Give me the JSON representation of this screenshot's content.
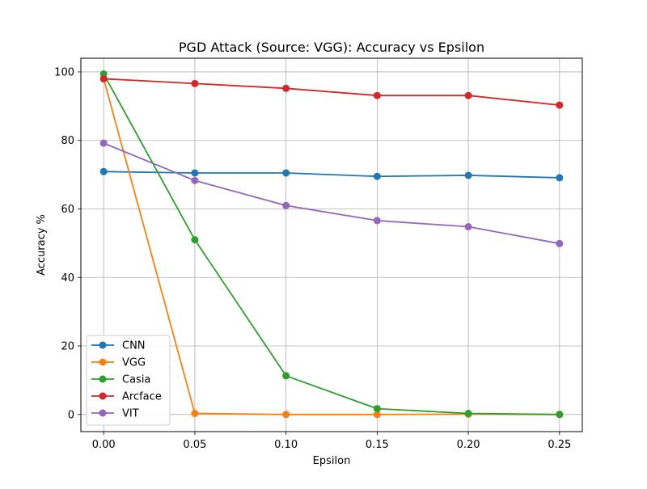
{
  "chart_data": {
    "type": "line",
    "title": "PGD Attack (Source: VGG): Accuracy vs Epsilon",
    "xlabel": "Epsilon",
    "ylabel": "Accuracy %",
    "x": [
      0.0,
      0.05,
      0.1,
      0.15,
      0.2,
      0.25
    ],
    "x_tick_labels": [
      "0.00",
      "0.05",
      "0.10",
      "0.15",
      "0.20",
      "0.25"
    ],
    "y_ticks": [
      0,
      20,
      40,
      60,
      80,
      100
    ],
    "y_tick_labels": [
      "0",
      "20",
      "40",
      "60",
      "80",
      "100"
    ],
    "xlim": [
      -0.0125,
      0.2625
    ],
    "ylim": [
      -5,
      104
    ],
    "grid": true,
    "legend_position": "lower-left",
    "series": [
      {
        "name": "CNN",
        "color": "#1f77b4",
        "values": [
          70.9,
          70.5,
          70.5,
          69.5,
          69.8,
          69.1
        ]
      },
      {
        "name": "VGG",
        "color": "#ff7f0e",
        "values": [
          98.0,
          0.3,
          0.0,
          0.0,
          0.1,
          0.0
        ]
      },
      {
        "name": "Casia",
        "color": "#2ca02c",
        "values": [
          99.4,
          51.0,
          11.3,
          1.7,
          0.3,
          0.0
        ]
      },
      {
        "name": "Arcface",
        "color": "#d62728",
        "values": [
          98.0,
          96.6,
          95.2,
          93.1,
          93.1,
          90.3
        ]
      },
      {
        "name": "VIT",
        "color": "#9467bd",
        "values": [
          79.2,
          68.3,
          61.0,
          56.6,
          54.8,
          49.9
        ]
      }
    ]
  }
}
